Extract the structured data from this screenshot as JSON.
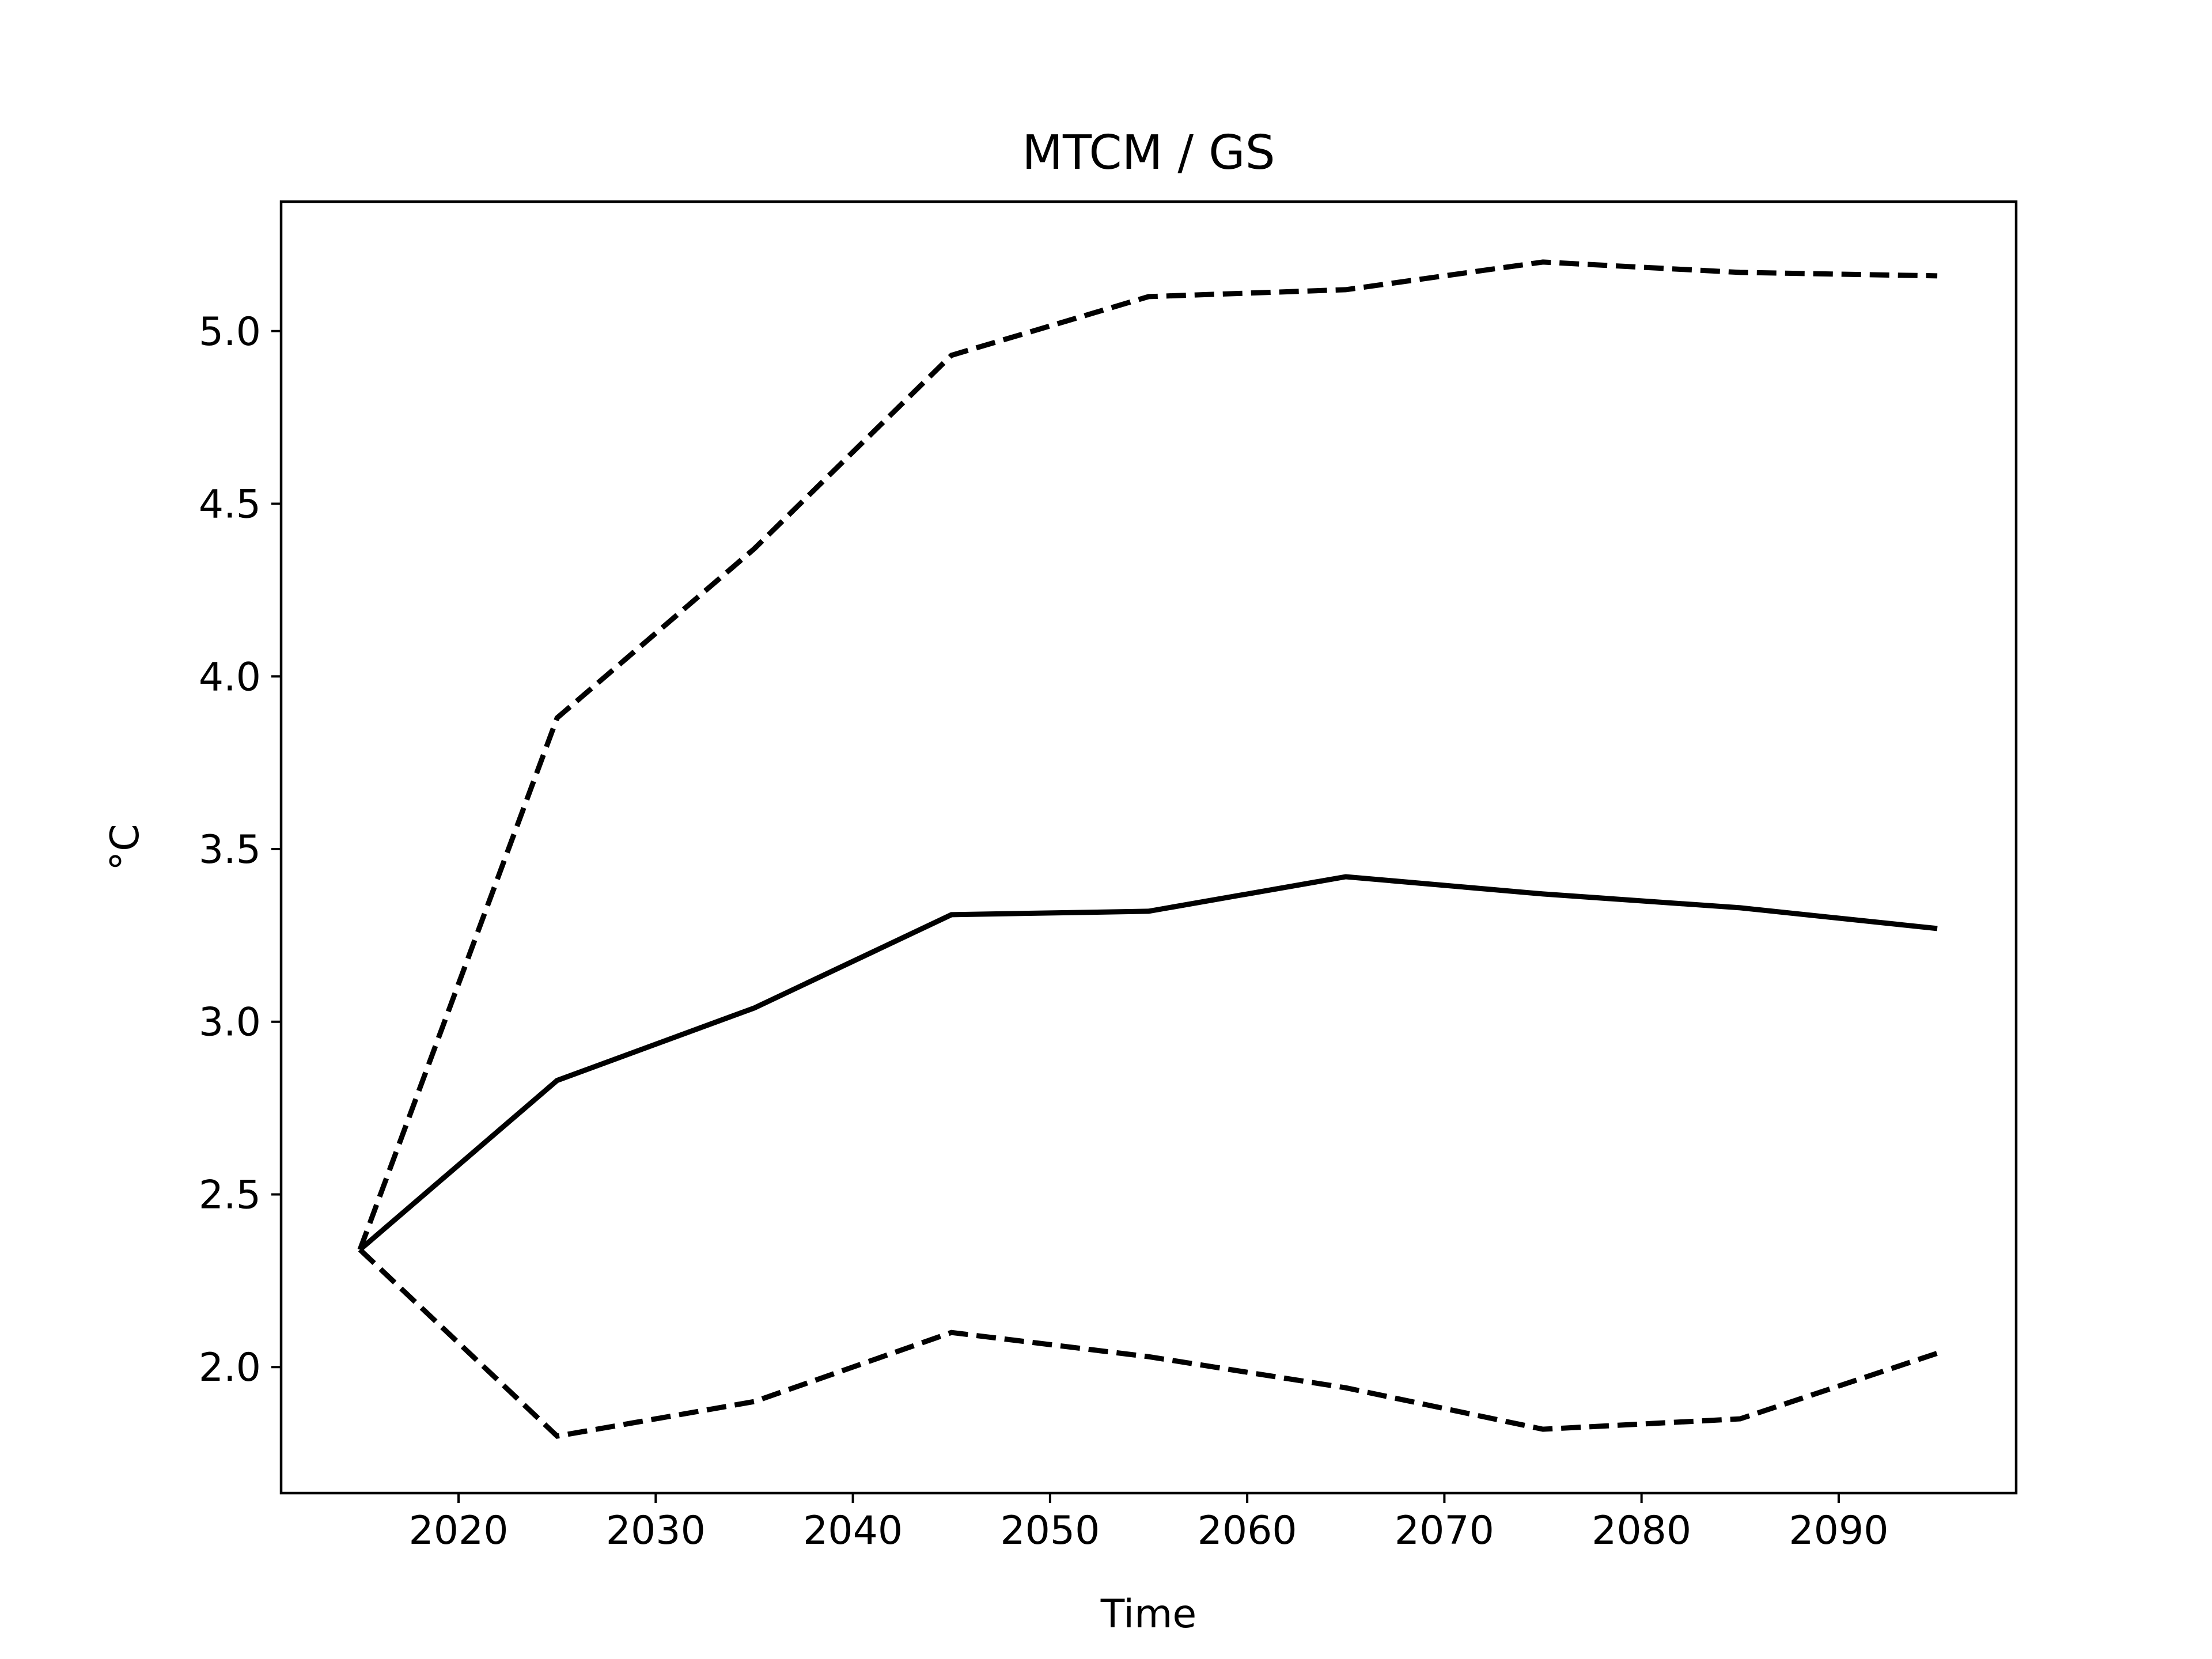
{
  "chart_data": {
    "type": "line",
    "title": "MTCM / GS",
    "xlabel": "Time",
    "ylabel": "°C",
    "xlim": [
      2011,
      2099
    ],
    "ylim": [
      1.635,
      5.375
    ],
    "x_ticks": [
      2020,
      2030,
      2040,
      2050,
      2060,
      2070,
      2080,
      2090
    ],
    "y_ticks": [
      2.0,
      2.5,
      3.0,
      3.5,
      4.0,
      4.5,
      5.0
    ],
    "grid": false,
    "x": [
      2015,
      2025,
      2035,
      2045,
      2055,
      2065,
      2075,
      2085,
      2095
    ],
    "series": [
      {
        "style": "solid",
        "color": "#000000",
        "values": [
          2.34,
          2.83,
          3.04,
          3.31,
          3.32,
          3.42,
          3.37,
          3.33,
          3.27
        ]
      },
      {
        "style": "dashed",
        "color": "#000000",
        "values": [
          2.34,
          3.88,
          4.37,
          4.93,
          5.1,
          5.12,
          5.2,
          5.17,
          5.16
        ]
      },
      {
        "style": "dashed",
        "color": "#000000",
        "values": [
          2.34,
          1.8,
          1.9,
          2.1,
          2.03,
          1.94,
          1.82,
          1.85,
          2.04
        ]
      }
    ]
  }
}
